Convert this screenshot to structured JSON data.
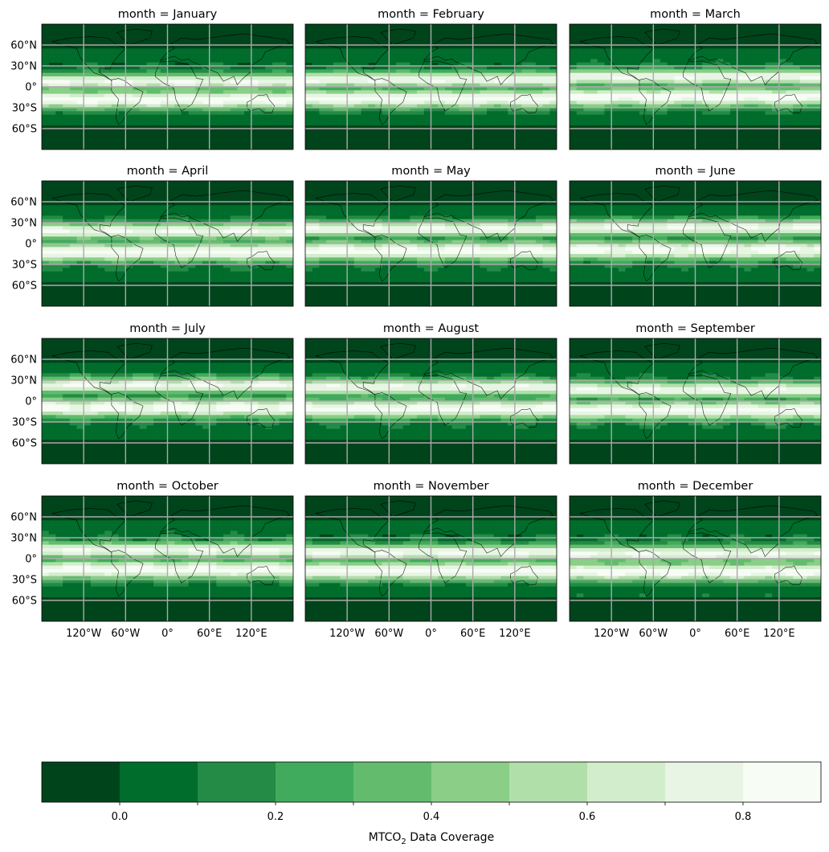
{
  "chart_data": {
    "type": "heatmap",
    "facet_label": "month",
    "panels": [
      {
        "title": "month = January"
      },
      {
        "title": "month = February"
      },
      {
        "title": "month = March"
      },
      {
        "title": "month = April"
      },
      {
        "title": "month = May"
      },
      {
        "title": "month = June"
      },
      {
        "title": "month = July"
      },
      {
        "title": "month = August"
      },
      {
        "title": "month = September"
      },
      {
        "title": "month = October"
      },
      {
        "title": "month = November"
      },
      {
        "title": "month = December"
      }
    ],
    "lat_ticks": [
      {
        "value": 60,
        "label": "60°N"
      },
      {
        "value": 30,
        "label": "30°N"
      },
      {
        "value": 0,
        "label": "0°"
      },
      {
        "value": -30,
        "label": "30°S"
      },
      {
        "value": -60,
        "label": "60°S"
      }
    ],
    "lon_ticks": [
      {
        "value": -120,
        "label": "120°W"
      },
      {
        "value": -60,
        "label": "60°W"
      },
      {
        "value": 0,
        "label": "0°"
      },
      {
        "value": 60,
        "label": "60°E"
      },
      {
        "value": 120,
        "label": "120°E"
      }
    ],
    "lon_range": [
      -180,
      180
    ],
    "lat_range": [
      -90,
      90
    ],
    "gridlines": true,
    "colorbar": {
      "label_prefix": "MTCO",
      "label_subscript": "2",
      "label_suffix": " Data Coverage",
      "range": [
        -0.1,
        0.9
      ],
      "levels": [
        -0.1,
        0.0,
        0.1,
        0.2,
        0.3,
        0.4,
        0.5,
        0.6,
        0.7,
        0.8,
        0.9
      ],
      "colors": [
        "#00441b",
        "#006d2c",
        "#238b45",
        "#41ab5d",
        "#63bc6e",
        "#8ace88",
        "#b0dfaa",
        "#d2edcc",
        "#e8f5e4",
        "#f7fcf5"
      ],
      "tick_labels": [
        {
          "value": 0.0,
          "label": "0.0"
        },
        {
          "value": 0.2,
          "label": "0.2"
        },
        {
          "value": 0.4,
          "label": "0.4"
        },
        {
          "value": 0.6,
          "label": "0.6"
        },
        {
          "value": 0.8,
          "label": "0.8"
        }
      ]
    }
  }
}
